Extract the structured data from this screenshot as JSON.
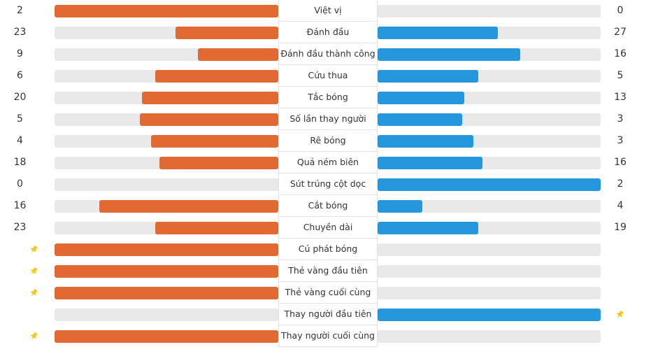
{
  "colors": {
    "home": "#e06a31",
    "away": "#2797dd",
    "track": "#e9e9e9",
    "pin": "#f5c518"
  },
  "stats": [
    {
      "label": "Việt vị",
      "home": "2",
      "away": "0",
      "home_fill": 1.0,
      "away_fill": 0.0
    },
    {
      "label": "Đánh đầu",
      "home": "23",
      "away": "27",
      "home_fill": 0.46,
      "away_fill": 0.54
    },
    {
      "label": "Đánh đầu thành công",
      "home": "9",
      "away": "16",
      "home_fill": 0.36,
      "away_fill": 0.64
    },
    {
      "label": "Cứu thua",
      "home": "6",
      "away": "5",
      "home_fill": 0.55,
      "away_fill": 0.45
    },
    {
      "label": "Tắc bóng",
      "home": "20",
      "away": "13",
      "home_fill": 0.61,
      "away_fill": 0.39
    },
    {
      "label": "Số lần thay người",
      "home": "5",
      "away": "3",
      "home_fill": 0.62,
      "away_fill": 0.38
    },
    {
      "label": "Rê bóng",
      "home": "4",
      "away": "3",
      "home_fill": 0.57,
      "away_fill": 0.43
    },
    {
      "label": "Quả ném biên",
      "home": "18",
      "away": "16",
      "home_fill": 0.53,
      "away_fill": 0.47
    },
    {
      "label": "Sút trúng cột dọc",
      "home": "0",
      "away": "2",
      "home_fill": 0.0,
      "away_fill": 1.0
    },
    {
      "label": "Cắt bóng",
      "home": "16",
      "away": "4",
      "home_fill": 0.8,
      "away_fill": 0.2
    },
    {
      "label": "Chuyền dài",
      "home": "23",
      "away": "19",
      "home_fill": 0.55,
      "away_fill": 0.45
    },
    {
      "label": "Cú phát bóng",
      "home_pin": true,
      "home_fill": 1.0,
      "away_fill": 0.0
    },
    {
      "label": "Thẻ vàng đầu tiên",
      "home_pin": true,
      "home_fill": 1.0,
      "away_fill": 0.0
    },
    {
      "label": "Thẻ vàng cuối cùng",
      "home_pin": true,
      "home_fill": 1.0,
      "away_fill": 0.0
    },
    {
      "label": "Thay người đầu tiên",
      "away_pin": true,
      "home_fill": 0.0,
      "away_fill": 1.0
    },
    {
      "label": "Thay người cuối cùng",
      "home_pin": true,
      "home_fill": 1.0,
      "away_fill": 0.0
    }
  ]
}
